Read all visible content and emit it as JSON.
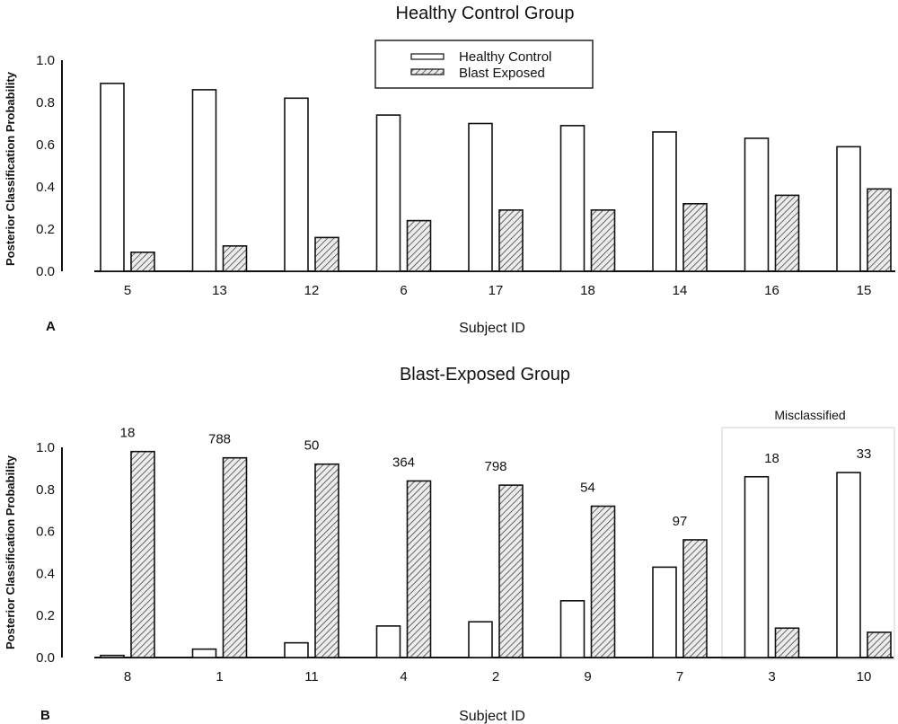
{
  "chart_data": [
    {
      "type": "bar",
      "panel_label": "A",
      "title": "Healthy Control Group",
      "xlabel": "Subject ID",
      "ylabel": "Posterior Classification Probability",
      "ylim": [
        0,
        1.0
      ],
      "yticks": [
        "0.0",
        "0.2",
        "0.4",
        "0.6",
        "0.8",
        "1.0"
      ],
      "grid": false,
      "legend": {
        "placement": "top-center",
        "entries": [
          "Healthy Control",
          "Blast Exposed"
        ]
      },
      "categories": [
        "5",
        "13",
        "12",
        "6",
        "17",
        "18",
        "14",
        "16",
        "15"
      ],
      "series": [
        {
          "name": "Healthy Control",
          "pattern": "open",
          "values": [
            0.89,
            0.86,
            0.82,
            0.74,
            0.7,
            0.69,
            0.66,
            0.63,
            0.59
          ]
        },
        {
          "name": "Blast Exposed",
          "pattern": "hatched",
          "values": [
            0.09,
            0.12,
            0.16,
            0.24,
            0.29,
            0.29,
            0.32,
            0.36,
            0.39
          ]
        }
      ]
    },
    {
      "type": "bar",
      "panel_label": "B",
      "title": "Blast-Exposed Group",
      "xlabel": "Subject ID",
      "ylabel": "Posterior Classification Probability",
      "ylim": [
        0,
        1.0
      ],
      "yticks": [
        "0.0",
        "0.2",
        "0.4",
        "0.6",
        "0.8",
        "1.0"
      ],
      "grid": false,
      "categories": [
        "8",
        "1",
        "11",
        "4",
        "2",
        "9",
        "7",
        "3",
        "10"
      ],
      "annotations": [
        "18",
        "788",
        "50",
        "364",
        "798",
        "54",
        "97",
        "18",
        "33"
      ],
      "highlight_box": {
        "label": "Misclassified",
        "categories": [
          "3",
          "10"
        ]
      },
      "series": [
        {
          "name": "Healthy Control",
          "pattern": "open",
          "values": [
            0.01,
            0.04,
            0.07,
            0.15,
            0.17,
            0.27,
            0.43,
            0.86,
            0.88
          ]
        },
        {
          "name": "Blast Exposed",
          "pattern": "hatched",
          "values": [
            0.98,
            0.95,
            0.92,
            0.84,
            0.82,
            0.72,
            0.56,
            0.14,
            0.12
          ]
        }
      ]
    }
  ]
}
